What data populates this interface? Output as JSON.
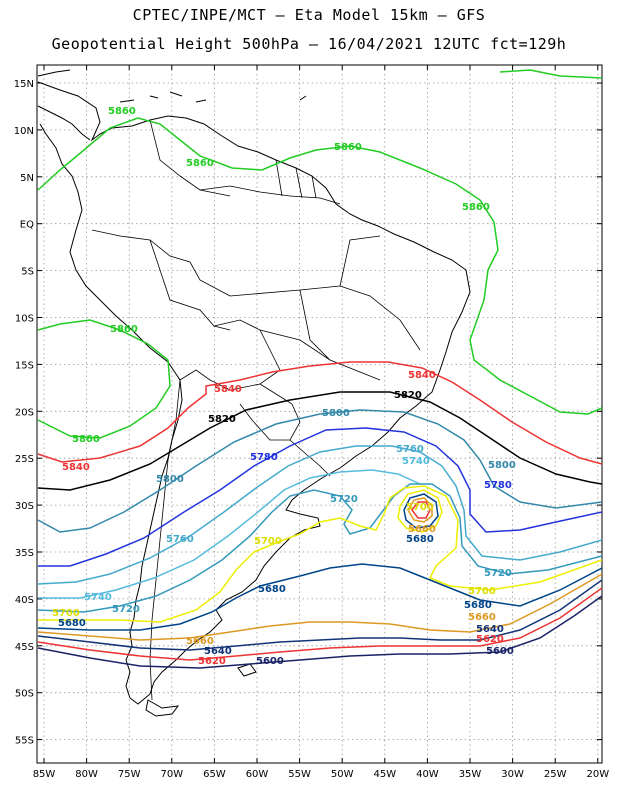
{
  "header": {
    "line1": "CPTEC/INPE/MCT –  Eta Model 15km – GFS",
    "line2": "Geopotential Height 500hPa – 16/04/2021 12UTC fct=129h"
  },
  "axes": {
    "lat_labels": [
      "15N",
      "10N",
      "5N",
      "EQ",
      "5S",
      "10S",
      "15S",
      "20S",
      "25S",
      "30S",
      "35S",
      "40S",
      "45S",
      "50S",
      "55S"
    ],
    "lon_labels": [
      "85W",
      "80W",
      "75W",
      "70W",
      "65W",
      "60W",
      "55W",
      "50W",
      "45W",
      "40W",
      "35W",
      "30W",
      "25W",
      "20W"
    ]
  },
  "contour_levels": [
    {
      "value": "5860",
      "color": "#22cc22"
    },
    {
      "value": "5840",
      "color": "#ee3333"
    },
    {
      "value": "5820",
      "color": "#000000"
    },
    {
      "value": "5800",
      "color": "#3388aa"
    },
    {
      "value": "5780",
      "color": "#2233dd"
    },
    {
      "value": "5760",
      "color": "#44aacc"
    },
    {
      "value": "5740",
      "color": "#55bbdd"
    },
    {
      "value": "5720",
      "color": "#3399bb"
    },
    {
      "value": "5700",
      "color": "#eeee00"
    },
    {
      "value": "5680",
      "color": "#004488"
    },
    {
      "value": "5660",
      "color": "#dd9922"
    },
    {
      "value": "5640",
      "color": "#113377"
    },
    {
      "value": "5620",
      "color": "#ee3333"
    },
    {
      "value": "5600",
      "color": "#1a2266"
    }
  ],
  "labels": {
    "green_a": "5860",
    "green_b": "5860",
    "green_c": "5860",
    "green_d": "5860",
    "green_e": "5860",
    "green_f": "5860",
    "red_a": "5840",
    "red_b": "5840",
    "red_c": "5840",
    "black_a": "5820",
    "black_b": "5820",
    "c5800_a": "5800",
    "c5800_b": "5800",
    "c5800_c": "5800",
    "c5780_a": "5780",
    "c5780_b": "5780",
    "c5760_a": "5760",
    "c5760_b": "5760",
    "c5740_a": "5740",
    "c5740_b": "5740",
    "c5720_a": "5720",
    "c5720_b": "5720",
    "c5720_c": "5720",
    "c5700_a": "5700",
    "c5700_b": "5700",
    "c5700_c": "5700",
    "c5700_d": "5700",
    "c5680_a": "5680",
    "c5680_b": "5680",
    "c5680_c": "5680",
    "c5680_d": "5680",
    "c5660_a": "5660",
    "c5660_b": "5660",
    "c5660_c": "5660",
    "c5640_a": "5640",
    "c5640_b": "5640",
    "c5620_a": "5620",
    "c5620_b": "5620",
    "c5600_a": "5600",
    "c5600_b": "5600"
  }
}
